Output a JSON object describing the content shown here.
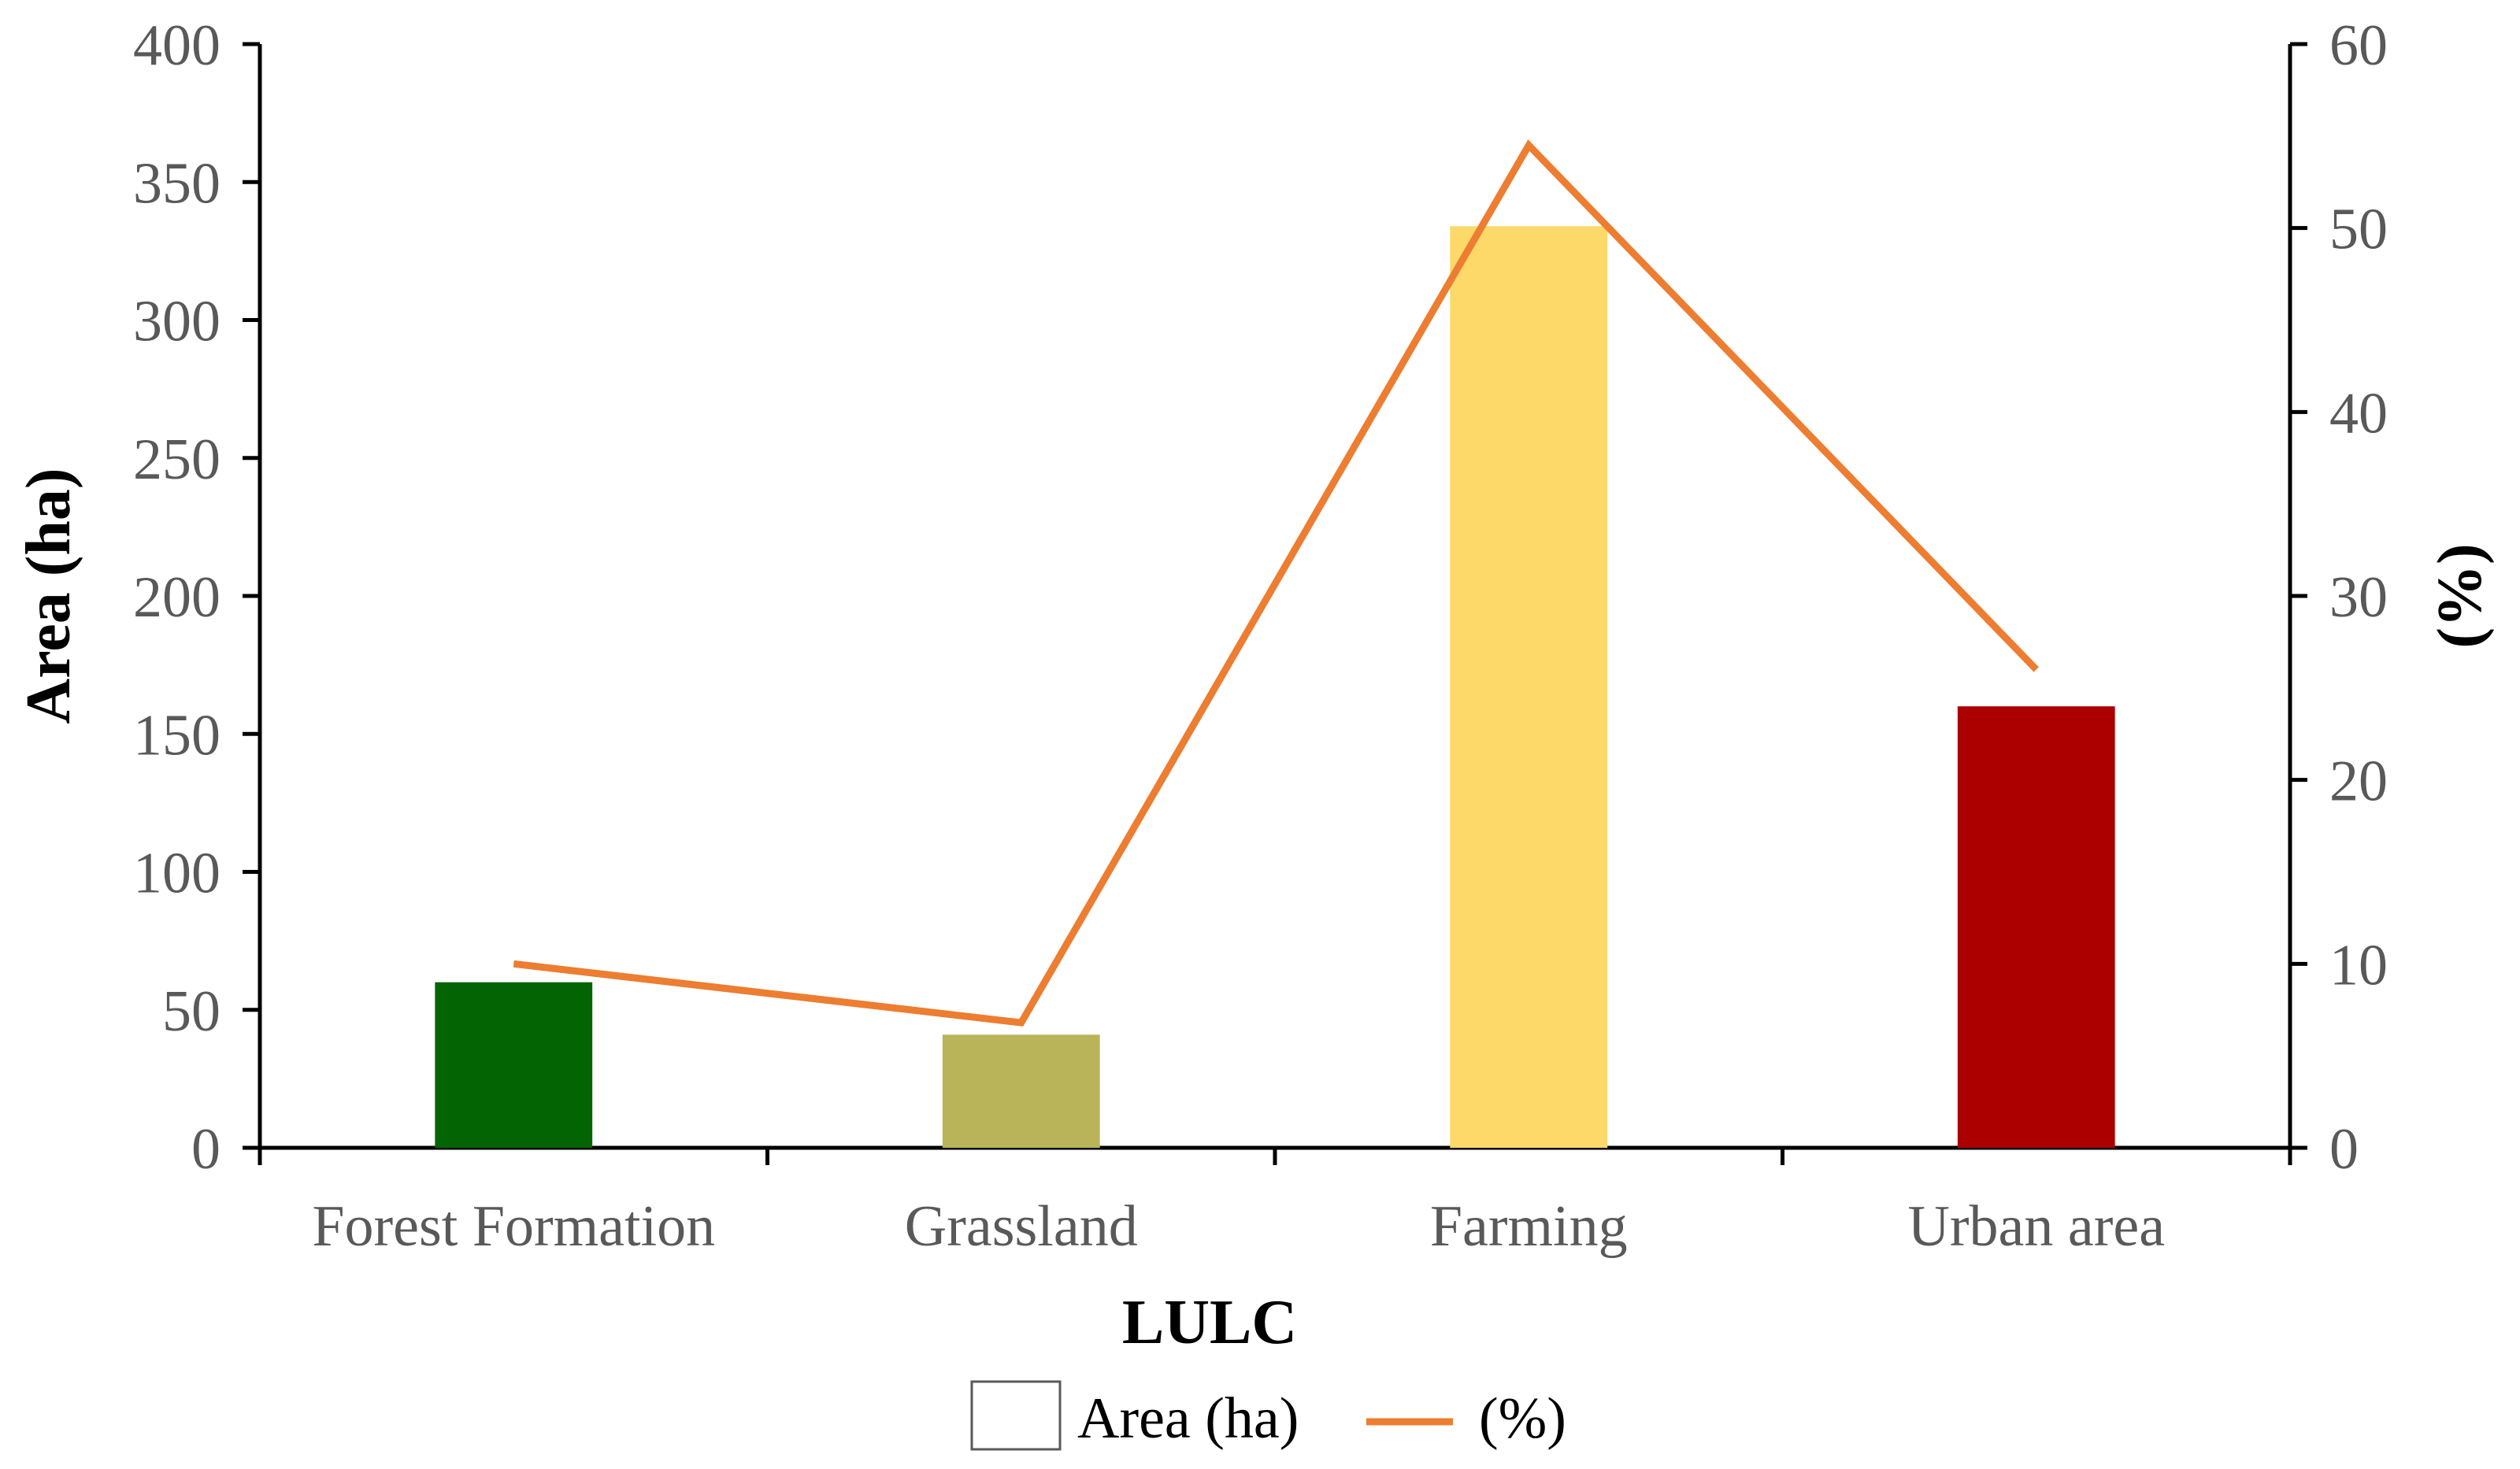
{
  "chart_data": {
    "type": "bar+line",
    "title": "",
    "categories": [
      "Forest Formation",
      "Grassland",
      "Farming",
      "Urban area"
    ],
    "series": [
      {
        "name": "Area (ha)",
        "type": "bar",
        "axis": "left",
        "values": [
          60,
          41,
          334,
          160
        ],
        "colors": [
          "#036403",
          "#B9B459",
          "#FCD968",
          "#AC0000"
        ]
      },
      {
        "name": "(%)",
        "type": "line",
        "axis": "right",
        "values": [
          10,
          6.8,
          54.5,
          26
        ],
        "color": "#ED7D31"
      }
    ],
    "xlabel": "LULC",
    "ylabel": "Area (ha)",
    "ylabel_right": "(%)",
    "ylim": [
      0,
      400
    ],
    "yticks": [
      "0",
      "50",
      "100",
      "150",
      "200",
      "250",
      "300",
      "350",
      "400"
    ],
    "ylim_right": [
      0,
      60
    ],
    "yticks_right": [
      "0",
      "10",
      "20",
      "30",
      "40",
      "50",
      "60"
    ],
    "grid": false,
    "legend_position": "bottom"
  }
}
